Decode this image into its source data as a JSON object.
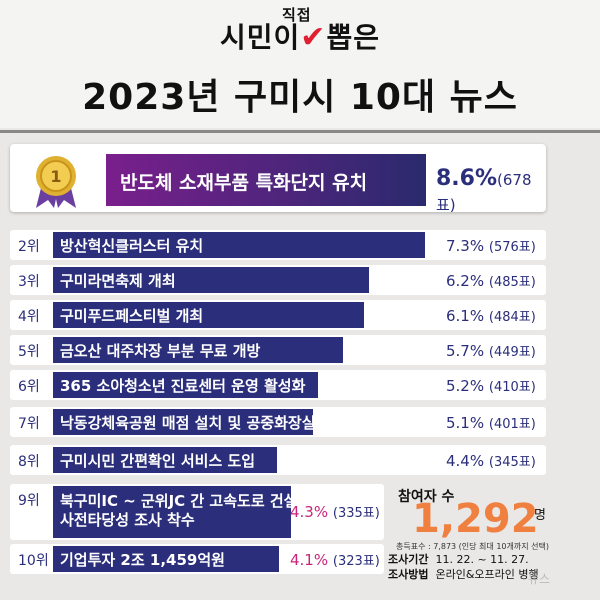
{
  "header": {
    "title_a": "시민이",
    "title_b": "뽑은",
    "title_small": "직접",
    "title_line2": "2023년 구미시 10대 뉴스"
  },
  "chart_data": {
    "type": "bar",
    "items": [
      {
        "rank": "1위",
        "label": "반도체 소재부품 특화단지 유치",
        "percent": 8.6,
        "pct_text": "8.6%",
        "votes_text": "(678표)"
      },
      {
        "rank": "2위",
        "label": "방산혁신클러스터 유치",
        "percent": 7.3,
        "pct_text": "7.3%",
        "votes_text": "(576표)"
      },
      {
        "rank": "3위",
        "label": "구미라면축제 개최",
        "percent": 6.2,
        "pct_text": "6.2%",
        "votes_text": "(485표)"
      },
      {
        "rank": "4위",
        "label": "구미푸드페스티벌 개최",
        "percent": 6.1,
        "pct_text": "6.1%",
        "votes_text": "(484표)"
      },
      {
        "rank": "5위",
        "label": "금오산 대주차장 부분 무료 개방",
        "percent": 5.7,
        "pct_text": "5.7%",
        "votes_text": "(449표)"
      },
      {
        "rank": "6위",
        "label": "365 소아청소년 진료센터 운영 활성화",
        "percent": 5.2,
        "pct_text": "5.2%",
        "votes_text": "(410표)"
      },
      {
        "rank": "7위",
        "label": "낙동강체육공원 매점 설치 및 공중화장실 개선",
        "percent": 5.1,
        "pct_text": "5.1%",
        "votes_text": "(401표)"
      },
      {
        "rank": "8위",
        "label": "구미시민 간편확인 서비스 도입",
        "percent": 4.4,
        "pct_text": "4.4%",
        "votes_text": "(345표)"
      },
      {
        "rank": "9위",
        "label": "북구미IC ~ 군위JC 간 고속도로 건설 사전타당성 조사 착수",
        "percent": 4.3,
        "pct_text": "4.3%",
        "votes_text": "(335표)"
      },
      {
        "rank": "10위",
        "label": "기업투자 2조 1,459억원",
        "percent": 4.1,
        "pct_text": "4.1%",
        "votes_text": "(323표)"
      }
    ],
    "colors": {
      "bar": "#2b2e7a",
      "top_bar_start": "#7a1f8c",
      "top_bar_end": "#2a2a6e",
      "accent": "#f08040"
    }
  },
  "summary": {
    "participants_label": "참여자 수",
    "participants_value": "1,292",
    "participants_unit": "명",
    "total_votes": "총득표수 : 7,873 (인당 최대 10개까지 선택)",
    "period_label": "조사기간",
    "period_value": "11. 22. ~ 11. 27.",
    "method_label": "조사방법",
    "method_value": "온라인&오프라인 병행"
  },
  "watermark": "뉴스"
}
